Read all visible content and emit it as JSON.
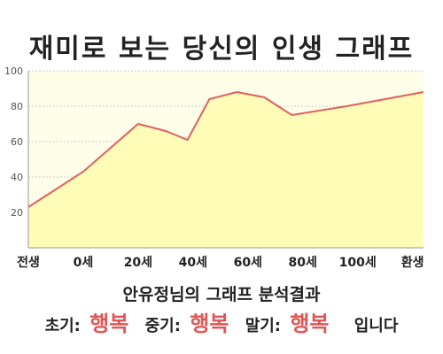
{
  "chart_data": {
    "type": "area",
    "title": "재미로 보는 당신의 인생 그래프",
    "x_tick_labels": [
      "전생",
      "0세",
      "20세",
      "40세",
      "60세",
      "80세",
      "100세",
      "환생"
    ],
    "x_ticks": [
      -20,
      0,
      20,
      40,
      60,
      80,
      100,
      120
    ],
    "xlim": [
      -20,
      124
    ],
    "ylim": [
      0,
      100
    ],
    "y_ticks": [
      20,
      40,
      60,
      80,
      100
    ],
    "grid": true,
    "series": [
      {
        "x": [
          -20,
          0,
          20,
          30,
          38,
          46,
          56,
          66,
          76,
          96,
          124
        ],
        "y": [
          23,
          43,
          70,
          66,
          61,
          84,
          88,
          85,
          75,
          80,
          88
        ]
      }
    ],
    "colors": {
      "line": "#e06060",
      "fill": "#fffcb8",
      "plot_bg": "#fdfde8",
      "grid": "#cccccc"
    }
  },
  "summary": {
    "subtitle": "안유정님의 그래프 분석결과",
    "early_label": "초기:",
    "early_value": "행복",
    "middle_label": "중기:",
    "middle_value": "행복",
    "late_label": "말기:",
    "late_value": "행복",
    "ending": "입니다"
  }
}
